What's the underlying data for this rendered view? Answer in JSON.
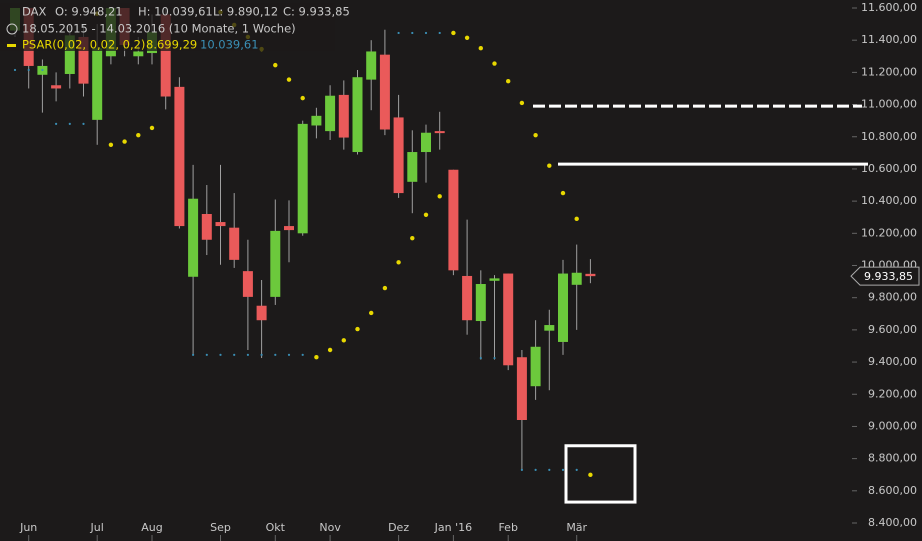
{
  "chart_data": {
    "type": "candlestick",
    "header": [
      "DAX",
      "O: 9.948,21",
      "H: 10.039,61",
      "L: 9.890,12",
      "C: 9.933,85"
    ],
    "period": "18.05.2015 - 14.03.2016 (10 Monate, 1 Woche)",
    "indicator": {
      "name": "PSAR(0,02, 0,02, 0,2)",
      "legend_values": [
        "8.699,29",
        "10.039,61"
      ],
      "series": [
        {
          "color": "#e8d800",
          "values": [
            null,
            null,
            null,
            null,
            null,
            null,
            11565,
            10750,
            10770,
            10810,
            10855,
            null,
            null,
            null,
            null,
            11575,
            11495,
            11420,
            11345,
            11245,
            11155,
            11040,
            9430,
            9475,
            9535,
            9605,
            9705,
            9860,
            10020,
            10170,
            10315,
            10430,
            11445,
            11415,
            11350,
            11255,
            11145,
            11010,
            10810,
            10620,
            10450,
            10290,
            8699.29
          ]
        },
        {
          "color": "#3a8fb5",
          "values": [
            11215,
            11215,
            11215,
            10880,
            10880,
            10880,
            null,
            null,
            null,
            null,
            null,
            null,
            null,
            9445,
            9445,
            9445,
            9445,
            9445,
            9445,
            9445,
            9445,
            9445,
            null,
            null,
            null,
            null,
            null,
            null,
            11445,
            11445,
            11445,
            11445,
            null,
            null,
            9425,
            9425,
            null,
            8730,
            8730,
            8730,
            8730,
            8730,
            null
          ]
        }
      ]
    },
    "categories": [
      null,
      "Jun",
      null,
      null,
      null,
      null,
      "Jul",
      null,
      null,
      null,
      "Aug",
      null,
      null,
      null,
      null,
      "Sep",
      null,
      null,
      null,
      "Okt",
      null,
      null,
      null,
      "Nov",
      null,
      null,
      null,
      null,
      "Dez",
      null,
      null,
      null,
      "Jan '16",
      null,
      null,
      null,
      "Feb",
      null,
      null,
      null,
      null,
      "Mär",
      null
    ],
    "open": [
      11460,
      11600,
      11185,
      11120,
      11190,
      11420,
      10905,
      11300,
      11600,
      11300,
      11320,
      11560,
      11110,
      9930,
      10320,
      10270,
      10235,
      9965,
      9750,
      9805,
      10245,
      10200,
      10870,
      10835,
      11060,
      10705,
      11155,
      11310,
      10920,
      10520,
      10705,
      10835,
      10595,
      9935,
      9655,
      9905,
      9950,
      9430,
      9250,
      9595,
      9525,
      9880,
      9948.21
    ],
    "high": [
      11600,
      11600,
      11280,
      11200,
      11500,
      11500,
      11500,
      11600,
      11600,
      11420,
      11560,
      11600,
      11170,
      10625,
      10500,
      10625,
      10450,
      10160,
      9910,
      10410,
      10405,
      10900,
      10980,
      11120,
      11150,
      11215,
      11400,
      11465,
      11060,
      10840,
      10875,
      10955,
      10595,
      10285,
      9970,
      9940,
      9950,
      9475,
      9660,
      9725,
      10035,
      10130,
      10039.61
    ],
    "low": [
      11420,
      11100,
      10950,
      11020,
      11100,
      11050,
      10750,
      11250,
      11300,
      11250,
      11250,
      10970,
      10230,
      9445,
      10065,
      10005,
      9985,
      9475,
      9425,
      9755,
      10020,
      10185,
      10790,
      10780,
      10720,
      10690,
      10965,
      10810,
      10420,
      10325,
      10515,
      10720,
      9940,
      9570,
      9415,
      9415,
      9350,
      8730,
      9165,
      9225,
      9445,
      9600,
      9890.12
    ],
    "close": [
      11600,
      11240,
      11240,
      11100,
      11430,
      11130,
      11350,
      11600,
      11370,
      11330,
      11450,
      11050,
      10245,
      10415,
      10160,
      10245,
      10035,
      9805,
      9660,
      10215,
      10220,
      10880,
      10930,
      11055,
      10795,
      11170,
      11330,
      10845,
      10450,
      10705,
      10825,
      10825,
      9970,
      9660,
      9885,
      9920,
      9380,
      9040,
      9495,
      9630,
      9950,
      9955,
      9933.85
    ],
    "last_label": "9.933,85",
    "up_color": "#6cc93c",
    "down_color": "#ea5a5a",
    "levels": [
      {
        "value": 10990,
        "style": "dashed"
      },
      {
        "value": 10630,
        "style": "solid"
      }
    ],
    "box": [
      8530,
      8880
    ],
    "ylim": [
      8400,
      11600
    ],
    "yticks": [
      {
        "value": 8400,
        "label": "8.400,00"
      },
      {
        "value": 8600,
        "label": "8.600,00"
      },
      {
        "value": 8800,
        "label": "8.800,00"
      },
      {
        "value": 9000,
        "label": "9.000,00"
      },
      {
        "value": 9200,
        "label": "9.200,00"
      },
      {
        "value": 9400,
        "label": "9.400,00"
      },
      {
        "value": 9600,
        "label": "9.600,00"
      },
      {
        "value": 9800,
        "label": "9.800,00"
      },
      {
        "value": 10000,
        "label": "10.000,00"
      },
      {
        "value": 10200,
        "label": "10.200,00"
      },
      {
        "value": 10400,
        "label": "10.400,00"
      },
      {
        "value": 10600,
        "label": "10.600,00"
      },
      {
        "value": 10800,
        "label": "10.800,00"
      },
      {
        "value": 11000,
        "label": "11.000,00"
      },
      {
        "value": 11200,
        "label": "11.200,00"
      },
      {
        "value": 11400,
        "label": "11.400,00"
      },
      {
        "value": 11600,
        "label": "11.600,00"
      }
    ]
  }
}
